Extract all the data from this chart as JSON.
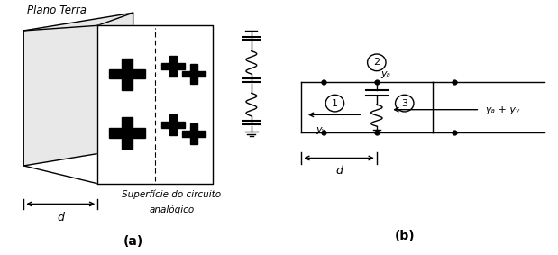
{
  "fig_width": 6.19,
  "fig_height": 2.83,
  "dpi": 100,
  "bg_color": "#ffffff",
  "label_a": "(a)",
  "label_b": "(b)",
  "plano_terra": "Plano Terra",
  "superficie_line1": "Superfície do circuito",
  "superficie_line2": "analógico",
  "ya_label": "yₐ",
  "yg_label": "yᵧ",
  "ya_yg_label": "yₐ + yᵧ",
  "d_label": "d",
  "node1_label": "1",
  "node2_label": "2",
  "node3_label": "3"
}
